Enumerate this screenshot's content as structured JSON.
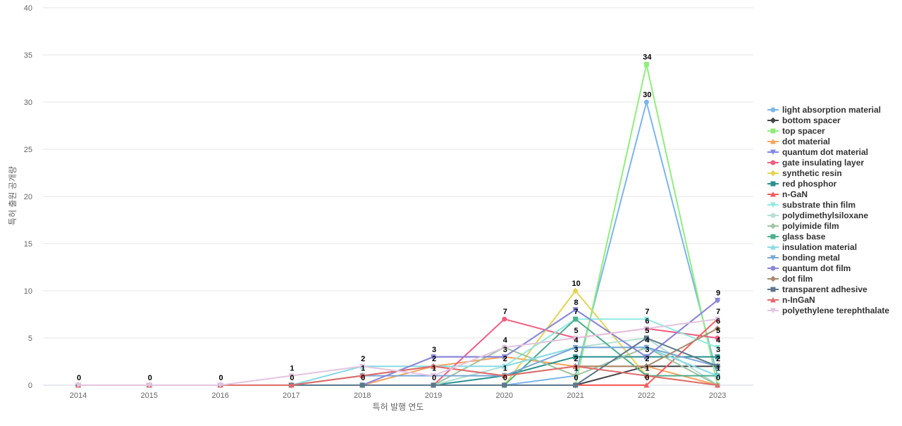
{
  "chart_data": {
    "type": "line",
    "xlabel": "특허 발행 연도",
    "ylabel": "특허 출원 공개량",
    "categories": [
      "2014",
      "2015",
      "2016",
      "2017",
      "2018",
      "2019",
      "2020",
      "2021",
      "2022",
      "2023"
    ],
    "ylim": [
      0,
      40
    ],
    "yticks": [
      0,
      5,
      10,
      15,
      20,
      25,
      30,
      35,
      40
    ],
    "grid": true,
    "legend": "right",
    "series": [
      {
        "name": "light absorption material",
        "color": "#7cb5ec",
        "marker": "circle",
        "values": [
          0,
          0,
          0,
          0,
          0,
          0,
          0,
          1,
          30,
          1
        ]
      },
      {
        "name": "bottom spacer",
        "color": "#434348",
        "marker": "diamond",
        "values": [
          0,
          0,
          0,
          0,
          0,
          0,
          0,
          0,
          2,
          2
        ]
      },
      {
        "name": "top spacer",
        "color": "#90ed7d",
        "marker": "square",
        "values": [
          0,
          0,
          0,
          0,
          0,
          0,
          0,
          0,
          34,
          0
        ]
      },
      {
        "name": "dot material",
        "color": "#f7a35c",
        "marker": "triangle",
        "values": [
          0,
          0,
          0,
          0,
          0,
          2,
          3,
          2,
          2,
          0
        ]
      },
      {
        "name": "quantum dot material",
        "color": "#8085e9",
        "marker": "triangle-down",
        "values": [
          0,
          0,
          0,
          0,
          0,
          3,
          3,
          8,
          3,
          9
        ]
      },
      {
        "name": "gate insulating layer",
        "color": "#f15c80",
        "marker": "circle",
        "values": [
          0,
          0,
          0,
          0,
          0,
          0,
          7,
          5,
          6,
          5
        ]
      },
      {
        "name": "synthetic resin",
        "color": "#e4d354",
        "marker": "diamond",
        "values": [
          0,
          0,
          0,
          0,
          0,
          0,
          0,
          10,
          1,
          0
        ]
      },
      {
        "name": "red phosphor",
        "color": "#2b908f",
        "marker": "square",
        "values": [
          0,
          0,
          0,
          0,
          0,
          0,
          1,
          3,
          3,
          3
        ]
      },
      {
        "name": "n-GaN",
        "color": "#f45b5b",
        "marker": "triangle",
        "values": [
          0,
          0,
          0,
          0,
          0,
          0,
          0,
          0,
          0,
          7
        ]
      },
      {
        "name": "substrate thin film",
        "color": "#91e8e1",
        "marker": "triangle-down",
        "values": [
          0,
          0,
          0,
          0,
          0,
          0,
          2,
          7,
          7,
          4
        ]
      },
      {
        "name": "polydimethylsiloxane",
        "color": "#b5dfd4",
        "marker": "circle",
        "values": [
          0,
          0,
          0,
          0,
          0,
          0,
          2,
          4,
          5,
          0
        ]
      },
      {
        "name": "polyimide film",
        "color": "#9fc49f",
        "marker": "diamond",
        "values": [
          0,
          0,
          0,
          0,
          0,
          0,
          4,
          1,
          4,
          0
        ]
      },
      {
        "name": "glass base",
        "color": "#4daf8d",
        "marker": "square",
        "values": [
          0,
          0,
          0,
          0,
          0,
          0,
          0,
          7,
          1,
          1
        ]
      },
      {
        "name": "insulation material",
        "color": "#87dbe6",
        "marker": "triangle",
        "values": [
          0,
          0,
          0,
          0,
          2,
          2,
          2,
          4,
          4,
          1
        ]
      },
      {
        "name": "bonding metal",
        "color": "#7aa6d6",
        "marker": "triangle-down",
        "values": [
          0,
          0,
          0,
          0,
          1,
          1,
          1,
          4,
          4,
          2
        ]
      },
      {
        "name": "quantum dot film",
        "color": "#8b87d9",
        "marker": "circle",
        "values": [
          0,
          0,
          0,
          0,
          0,
          3,
          3,
          8,
          3,
          9
        ]
      },
      {
        "name": "dot film",
        "color": "#a88a6e",
        "marker": "diamond",
        "values": [
          0,
          0,
          0,
          0,
          1,
          2,
          1,
          2,
          2,
          6
        ]
      },
      {
        "name": "transparent adhesive",
        "color": "#5c788c",
        "marker": "square",
        "values": [
          0,
          0,
          0,
          0,
          0,
          0,
          0,
          0,
          5,
          2
        ]
      },
      {
        "name": "n-InGaN",
        "color": "#e06c6c",
        "marker": "triangle",
        "values": [
          0,
          0,
          0,
          0,
          1,
          2,
          1,
          2,
          1,
          0
        ]
      },
      {
        "name": "polyethylene terephthalate",
        "color": "#e2c4e0",
        "marker": "triangle-down",
        "values": [
          0,
          0,
          0,
          1,
          2,
          1,
          4,
          5,
          6,
          7
        ]
      }
    ]
  }
}
